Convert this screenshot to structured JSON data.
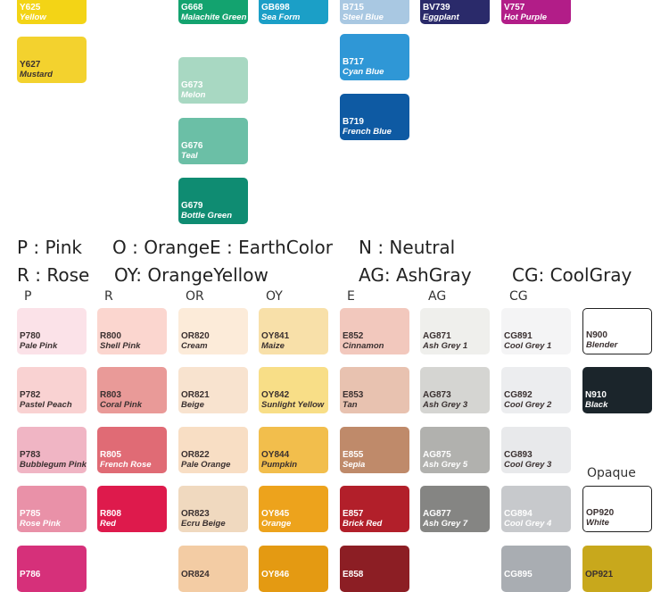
{
  "top_swatches": [
    {
      "code": "Y625",
      "name": "Yellow",
      "color": "#f3d416",
      "text": "light"
    },
    {
      "code": "Y627",
      "name": "Mustard",
      "color": "#f3d22e",
      "text": "dark"
    },
    {
      "code": "G668",
      "name": "Malachite Green",
      "color": "#13a36f",
      "text": "light"
    },
    {
      "code": "G673",
      "name": "Melon",
      "color": "#a8d8c2",
      "text": "light"
    },
    {
      "code": "G676",
      "name": "Teal",
      "color": "#6bbfa6",
      "text": "light"
    },
    {
      "code": "G679",
      "name": "Bottle Green",
      "color": "#0f8c72",
      "text": "light"
    },
    {
      "code": "GB698",
      "name": "Sea Form",
      "color": "#1b9fc7",
      "text": "light"
    },
    {
      "code": "B715",
      "name": "Steel Blue",
      "color": "#a9c8e2",
      "text": "light"
    },
    {
      "code": "B717",
      "name": "Cyan Blue",
      "color": "#2f97d6",
      "text": "light"
    },
    {
      "code": "B719",
      "name": "French Blue",
      "color": "#0e5aa3",
      "text": "light"
    },
    {
      "code": "BV739",
      "name": "Eggplant",
      "color": "#2a2a6a",
      "text": "light"
    },
    {
      "code": "V757",
      "name": "Hot Purple",
      "color": "#b21d88",
      "text": "light"
    }
  ],
  "legend": {
    "line1": [
      {
        "key": "P",
        "label": "Pink"
      },
      {
        "key": "O",
        "label": "Orange"
      },
      {
        "key": "E",
        "label": "EarthColor"
      },
      {
        "key": "N",
        "label": "Neutral"
      }
    ],
    "line2": [
      {
        "key": "R",
        "label": "Rose"
      },
      {
        "key": "OY",
        "label": "OrangeYellow"
      },
      {
        "key": "AG",
        "label": "AshGray"
      },
      {
        "key": "CG",
        "label": "CoolGray"
      }
    ]
  },
  "column_headers": [
    "P",
    "R",
    "OR",
    "OY",
    "E",
    "AG",
    "CG"
  ],
  "opaque_label": "Opaque",
  "swatches": [
    {
      "code": "P780",
      "name": "Pale Pink",
      "color": "#fbe2e8",
      "text": "dark"
    },
    {
      "code": "P782",
      "name": "Pastel Peach",
      "color": "#f9d2d2",
      "text": "dark"
    },
    {
      "code": "P783",
      "name": "Bubblegum Pink",
      "color": "#f0b5c4",
      "text": "dark"
    },
    {
      "code": "P785",
      "name": "Rose Pink",
      "color": "#e991a8",
      "text": "light"
    },
    {
      "code": "P786",
      "name": "",
      "color": "#d6307a",
      "text": "light"
    },
    {
      "code": "R800",
      "name": "Shell Pink",
      "color": "#fbd6cf",
      "text": "dark"
    },
    {
      "code": "R803",
      "name": "Coral Pink",
      "color": "#e99a98",
      "text": "dark"
    },
    {
      "code": "R805",
      "name": "French Rose",
      "color": "#e06b75",
      "text": "light"
    },
    {
      "code": "R808",
      "name": "Red",
      "color": "#de1a4c",
      "text": "light"
    },
    {
      "code": "OR820",
      "name": "Cream",
      "color": "#fcebd9",
      "text": "dark"
    },
    {
      "code": "OR821",
      "name": "Beige",
      "color": "#f8e3cf",
      "text": "dark"
    },
    {
      "code": "OR822",
      "name": "Pale Orange",
      "color": "#f8dec4",
      "text": "dark"
    },
    {
      "code": "OR823",
      "name": "Ecru Beige",
      "color": "#f0d9bf",
      "text": "dark"
    },
    {
      "code": "OR824",
      "name": "",
      "color": "#f3cca4",
      "text": "dark"
    },
    {
      "code": "OY841",
      "name": "Maize",
      "color": "#f8e0a9",
      "text": "dark"
    },
    {
      "code": "OY842",
      "name": "Sunlight Yellow",
      "color": "#f8de87",
      "text": "dark"
    },
    {
      "code": "OY844",
      "name": "Pumpkin",
      "color": "#f2be4c",
      "text": "dark"
    },
    {
      "code": "OY845",
      "name": "Orange",
      "color": "#eda31c",
      "text": "light"
    },
    {
      "code": "OY846",
      "name": "",
      "color": "#e49a12",
      "text": "light"
    },
    {
      "code": "E852",
      "name": "Cinnamon",
      "color": "#f2c8bd",
      "text": "dark"
    },
    {
      "code": "E853",
      "name": "Tan",
      "color": "#e8c2b0",
      "text": "dark"
    },
    {
      "code": "E855",
      "name": "Sepia",
      "color": "#bf8a6a",
      "text": "light"
    },
    {
      "code": "E857",
      "name": "Brick Red",
      "color": "#b21f2a",
      "text": "light"
    },
    {
      "code": "E858",
      "name": "",
      "color": "#8c1e24",
      "text": "light"
    },
    {
      "code": "AG871",
      "name": "Ash Grey 1",
      "color": "#efefec",
      "text": "dark"
    },
    {
      "code": "AG873",
      "name": "Ash Grey 3",
      "color": "#d5d5d2",
      "text": "dark"
    },
    {
      "code": "AG875",
      "name": "Ash Grey 5",
      "color": "#b1b1ae",
      "text": "light"
    },
    {
      "code": "AG877",
      "name": "Ash Grey 7",
      "color": "#858583",
      "text": "light"
    },
    {
      "code": "CG891",
      "name": "Cool Grey 1",
      "color": "#f4f4f5",
      "text": "dark"
    },
    {
      "code": "CG892",
      "name": "Cool Grey 2",
      "color": "#ecedef",
      "text": "dark"
    },
    {
      "code": "CG893",
      "name": "Cool Grey 3",
      "color": "#e8e9eb",
      "text": "dark"
    },
    {
      "code": "CG894",
      "name": "Cool Grey 4",
      "color": "#c7c9cc",
      "text": "light"
    },
    {
      "code": "CG895",
      "name": "",
      "color": "#a9adb2",
      "text": "light"
    },
    {
      "code": "N900",
      "name": "Blender",
      "color": "#ffffff",
      "text": "dark",
      "outline": true
    },
    {
      "code": "N910",
      "name": "Black",
      "color": "#1b252b",
      "text": "light"
    },
    {
      "code": "OP920",
      "name": "White",
      "color": "#ffffff",
      "text": "dark",
      "outline": true
    },
    {
      "code": "OP921",
      "name": "",
      "color": "#c8a81c",
      "text": "dark"
    }
  ]
}
